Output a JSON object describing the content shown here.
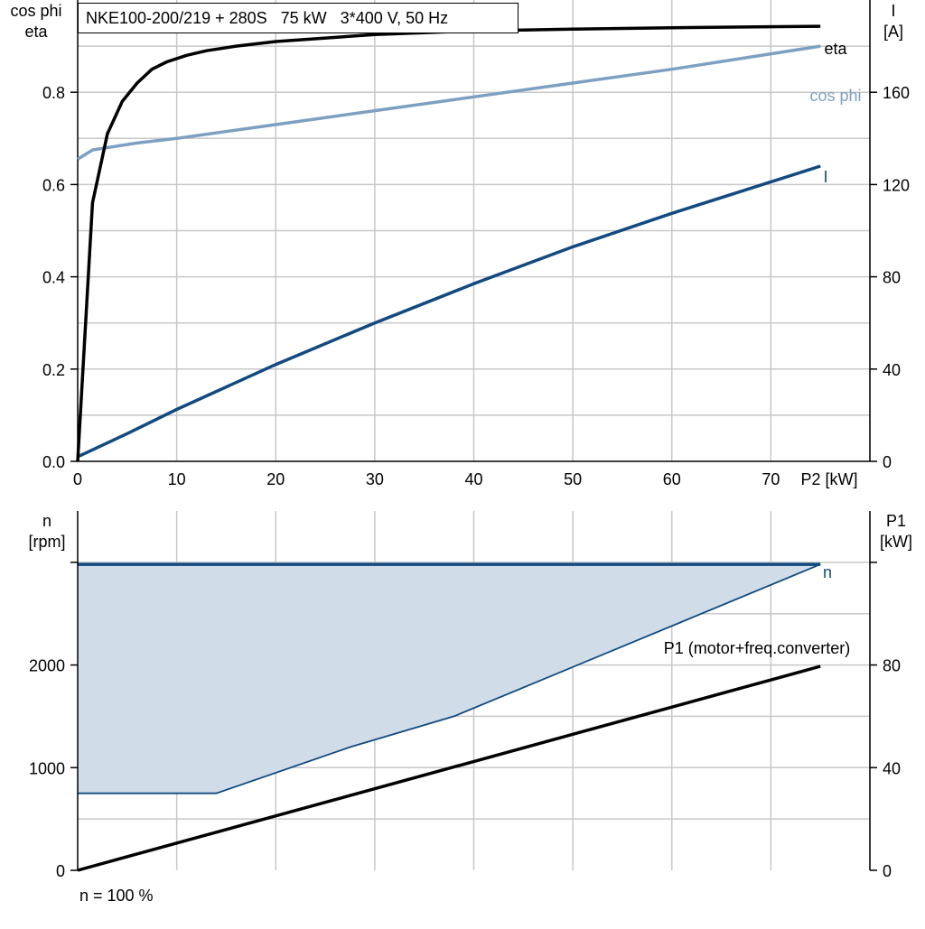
{
  "title": "NKE100-200/219 + 280S   75 kW   3*400 V, 50 Hz",
  "footer_note": "n = 100 %",
  "colors": {
    "eta": "#000000",
    "cosphi": "#7ea0c0",
    "current": "#124a80",
    "speed": "#124a80",
    "speed_fill": "#d0dce8",
    "p1": "#000000",
    "grid": "#c8c8c8"
  },
  "chart_data": [
    {
      "type": "line",
      "xlabel": "P2 [kW]",
      "ylabel_left": [
        "cos phi",
        "eta"
      ],
      "ylabel_right": [
        "I",
        "[A]"
      ],
      "xlim": [
        0,
        80
      ],
      "ylim_left": [
        0,
        1.0
      ],
      "ylim_right": [
        0,
        200
      ],
      "x_ticks": [
        "0",
        "10",
        "20",
        "30",
        "40",
        "50",
        "60",
        "70"
      ],
      "y_left_ticks": [
        "0.0",
        "0.2",
        "0.4",
        "0.6",
        "0.8"
      ],
      "y_right_ticks": [
        "0",
        "40",
        "80",
        "120",
        "160"
      ],
      "grid": true,
      "series": [
        {
          "name": "eta",
          "axis": "left",
          "x": [
            0,
            1.5,
            3,
            4.5,
            6,
            7.5,
            9,
            11,
            13,
            16,
            20,
            30,
            40,
            50,
            60,
            75
          ],
          "y": [
            0.0,
            0.56,
            0.71,
            0.78,
            0.82,
            0.85,
            0.866,
            0.88,
            0.89,
            0.9,
            0.91,
            0.925,
            0.933,
            0.937,
            0.94,
            0.943
          ]
        },
        {
          "name": "cos phi",
          "axis": "left",
          "x": [
            0,
            1.5,
            3,
            6,
            10,
            20,
            30,
            40,
            50,
            60,
            75
          ],
          "y": [
            0.655,
            0.675,
            0.68,
            0.69,
            0.7,
            0.73,
            0.76,
            0.79,
            0.82,
            0.85,
            0.9
          ]
        },
        {
          "name": "I",
          "axis": "right",
          "x": [
            0,
            5,
            10,
            20,
            30,
            40,
            50,
            60,
            75
          ],
          "y": [
            2,
            12,
            22.5,
            42,
            60,
            77,
            93,
            107.5,
            128
          ]
        }
      ]
    },
    {
      "type": "area",
      "xlabel": "",
      "ylabel_left": [
        "n",
        "[rpm]"
      ],
      "ylabel_right": [
        "P1",
        "[kW]"
      ],
      "xlim": [
        0,
        80
      ],
      "ylim_left": [
        0,
        3000
      ],
      "ylim_right": [
        0,
        120
      ],
      "y_left_ticks": [
        "0",
        "1000",
        "2000"
      ],
      "y_right_ticks": [
        "0",
        "40",
        "80"
      ],
      "grid": true,
      "series": [
        {
          "name": "n",
          "axis": "left",
          "x": [
            0,
            75
          ],
          "y": [
            2980,
            2980
          ],
          "lower": {
            "x": [
              0,
              14,
              27.5,
              38,
              75
            ],
            "y": [
              750,
              750,
              1200,
              1500,
              2980
            ]
          }
        },
        {
          "name": "P1 (motor+freq.converter)",
          "axis": "right",
          "x": [
            0,
            75
          ],
          "y": [
            0,
            79.5
          ]
        }
      ]
    }
  ]
}
